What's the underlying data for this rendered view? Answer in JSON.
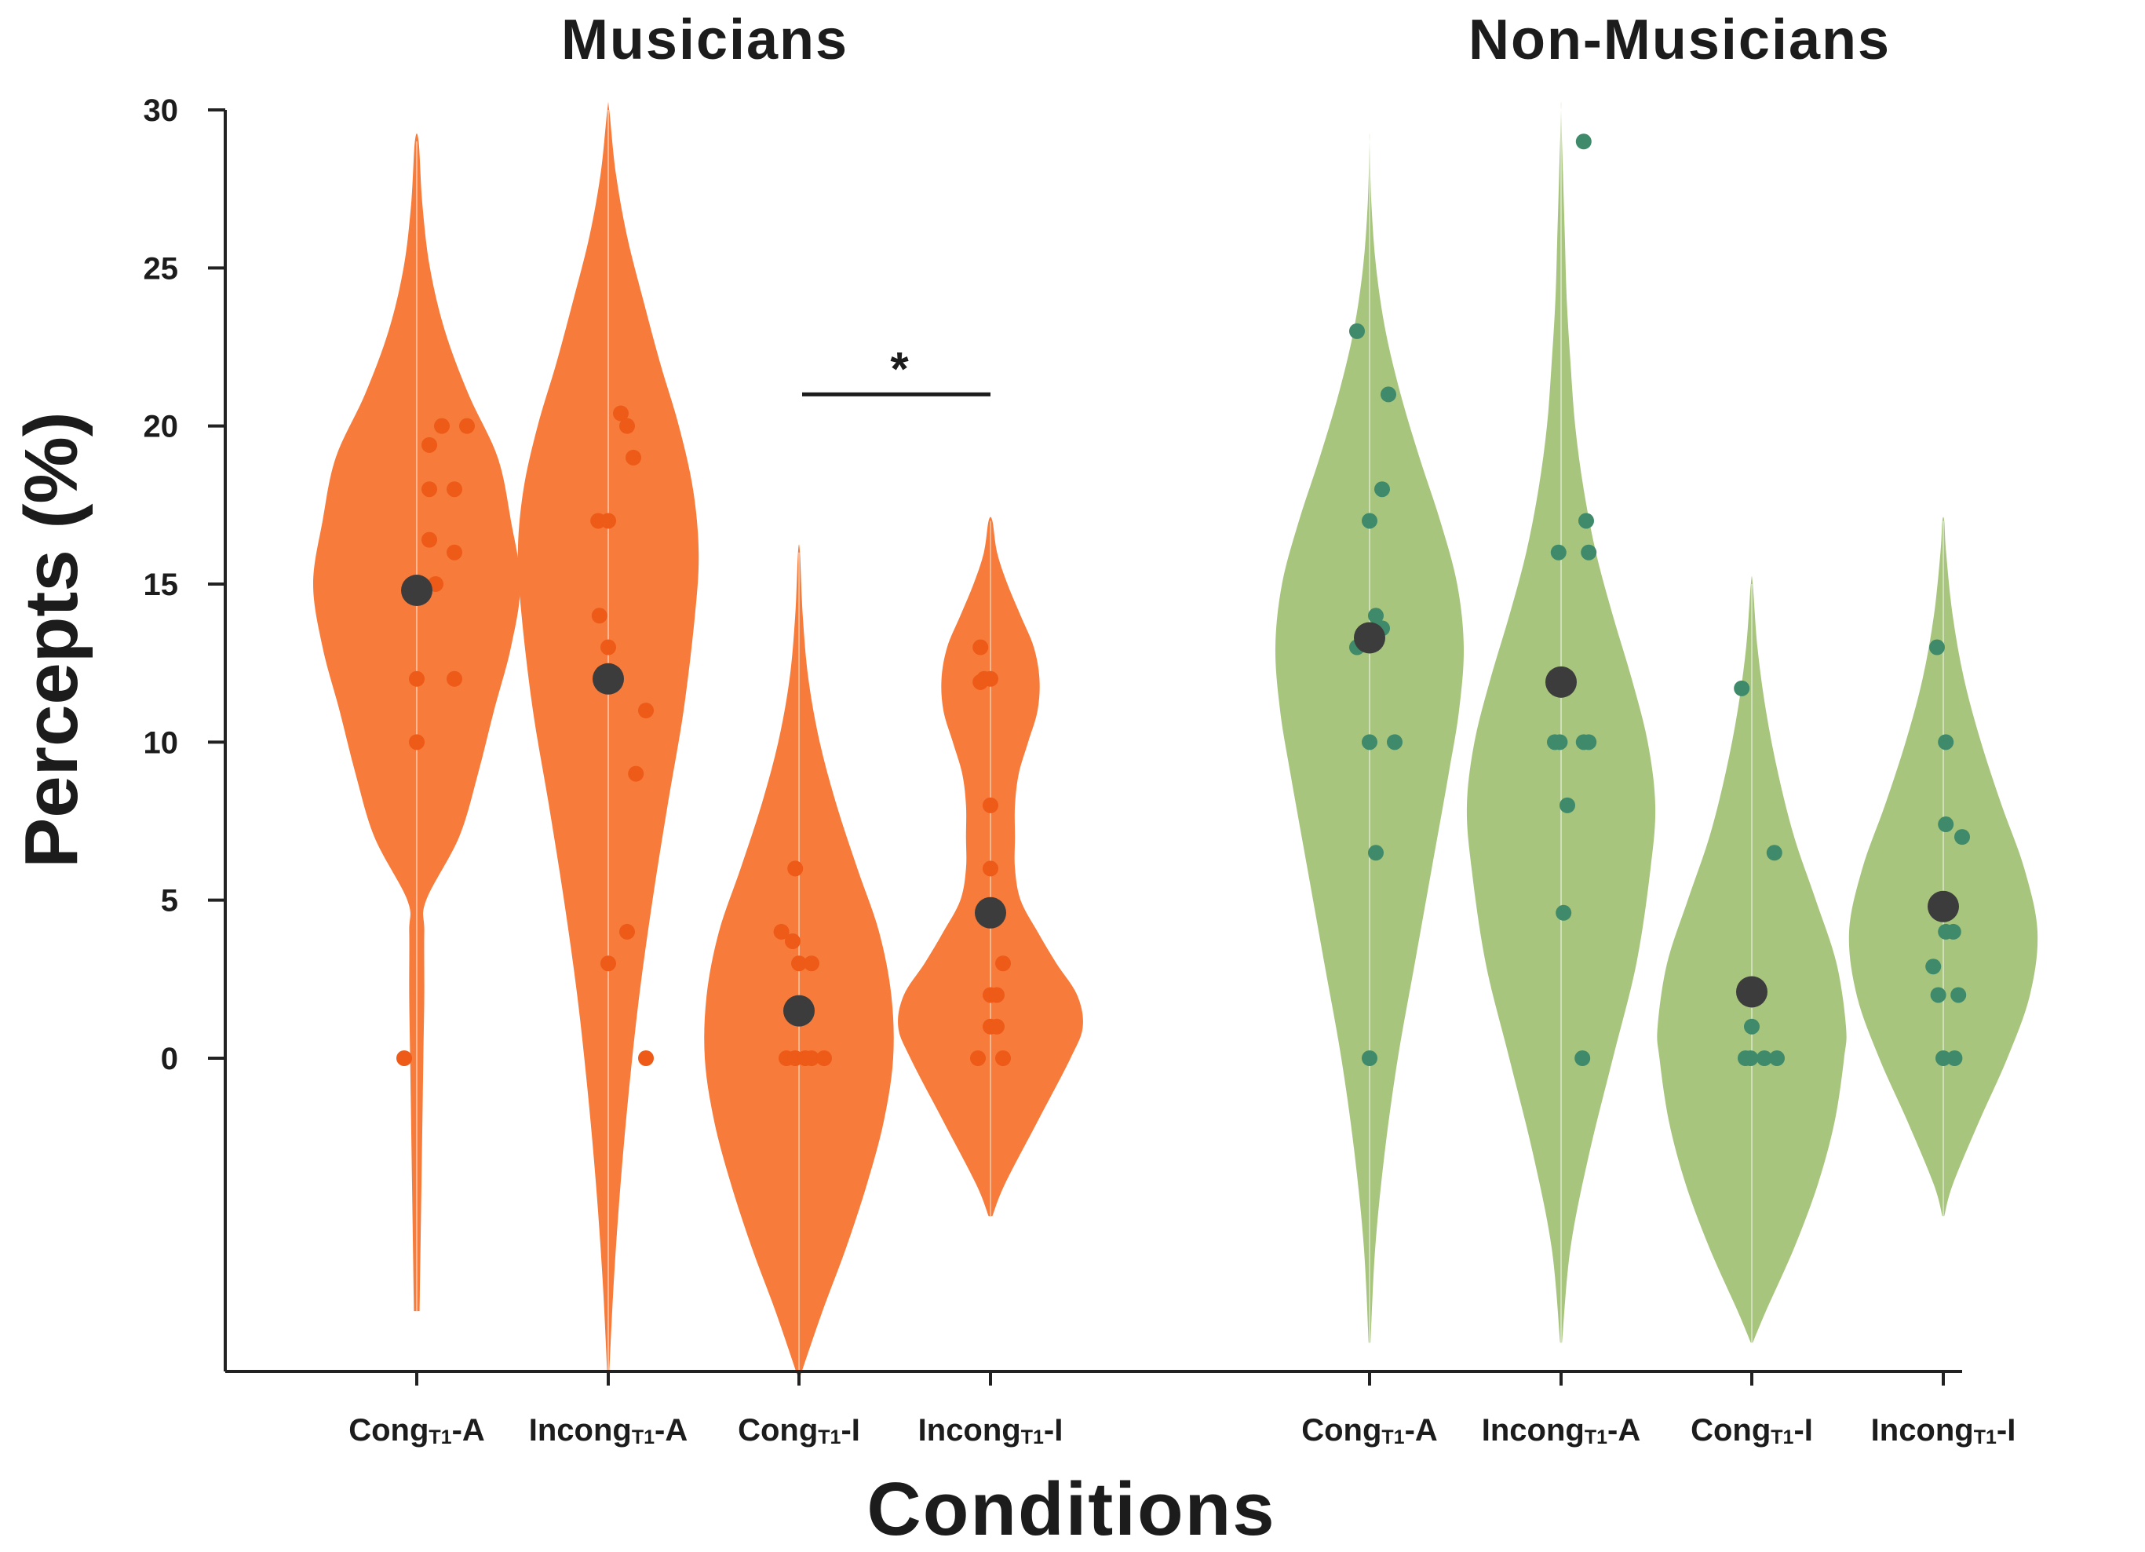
{
  "chart_data": {
    "type": "violin",
    "ylabel": "Percepts (%)",
    "xlabel": "Conditions",
    "ylim": [
      -10,
      30
    ],
    "yticks": [
      0,
      5,
      10,
      15,
      20,
      25,
      30
    ],
    "grid": false,
    "significance": [
      {
        "group": "Musicians",
        "between": [
          "CongT1-I",
          "IncongT1-I"
        ],
        "label": "*",
        "y": 21
      }
    ],
    "groups": [
      {
        "name": "Musicians",
        "color": "#f77b3a",
        "point_color": "#ee5a17",
        "mean_color": "#3c3c3c",
        "conditions": [
          {
            "label": "Cong",
            "sub": "T1",
            "suffix": "-A",
            "mean": 14.8,
            "points": [
              [
                0.0,
                10
              ],
              [
                0.0,
                12
              ],
              [
                0.1,
                16.4
              ],
              [
                0.1,
                18
              ],
              [
                0.1,
                19.4
              ],
              [
                0.2,
                20
              ],
              [
                0.15,
                15
              ],
              [
                0.4,
                20
              ],
              [
                0.3,
                18
              ],
              [
                0.3,
                16
              ],
              [
                0.3,
                12
              ],
              [
                -0.1,
                0
              ]
            ],
            "density": [
              [
                -8,
                0.03
              ],
              [
                -4,
                0.05
              ],
              [
                0,
                0.07
              ],
              [
                2,
                0.08
              ],
              [
                4,
                0.08
              ],
              [
                5,
                0.1
              ],
              [
                7,
                0.45
              ],
              [
                9,
                0.65
              ],
              [
                11,
                0.82
              ],
              [
                13,
                1.0
              ],
              [
                15,
                1.1
              ],
              [
                17,
                1.0
              ],
              [
                19,
                0.86
              ],
              [
                21,
                0.55
              ],
              [
                23,
                0.3
              ],
              [
                25,
                0.14
              ],
              [
                27,
                0.06
              ],
              [
                29,
                0.02
              ]
            ]
          },
          {
            "label": "Incong",
            "sub": "T1",
            "suffix": "-A",
            "mean": 12.0,
            "points": [
              [
                -0.08,
                17
              ],
              [
                0.0,
                17
              ],
              [
                -0.07,
                14
              ],
              [
                0.0,
                13
              ],
              [
                0.0,
                12
              ],
              [
                0.1,
                20.4
              ],
              [
                0.15,
                20
              ],
              [
                0.2,
                19
              ],
              [
                0.3,
                11
              ],
              [
                0.22,
                9
              ],
              [
                0.15,
                4
              ],
              [
                0.0,
                3
              ],
              [
                0.3,
                0
              ]
            ],
            "density": [
              [
                -10,
                0.01
              ],
              [
                -7,
                0.06
              ],
              [
                -4,
                0.13
              ],
              [
                -1,
                0.22
              ],
              [
                2,
                0.33
              ],
              [
                5,
                0.47
              ],
              [
                8,
                0.63
              ],
              [
                11,
                0.8
              ],
              [
                14,
                0.92
              ],
              [
                16,
                0.96
              ],
              [
                18,
                0.9
              ],
              [
                20,
                0.75
              ],
              [
                22,
                0.55
              ],
              [
                24,
                0.37
              ],
              [
                26,
                0.2
              ],
              [
                28,
                0.08
              ],
              [
                30,
                0.01
              ]
            ]
          },
          {
            "label": "Cong",
            "sub": "T1",
            "suffix": "-I",
            "mean": 1.5,
            "points": [
              [
                -0.14,
                4
              ],
              [
                -0.05,
                3.7
              ],
              [
                0.0,
                3
              ],
              [
                0.1,
                3
              ],
              [
                -0.1,
                0
              ],
              [
                -0.03,
                0
              ],
              [
                0.05,
                0
              ],
              [
                0.1,
                0
              ],
              [
                0.2,
                0
              ],
              [
                -0.03,
                6
              ]
            ],
            "density": [
              [
                -10,
                0.02
              ],
              [
                -8,
                0.25
              ],
              [
                -6,
                0.5
              ],
              [
                -4,
                0.72
              ],
              [
                -2,
                0.9
              ],
              [
                0,
                1.0
              ],
              [
                2,
                0.98
              ],
              [
                4,
                0.85
              ],
              [
                6,
                0.62
              ],
              [
                8,
                0.4
              ],
              [
                10,
                0.22
              ],
              [
                12,
                0.1
              ],
              [
                14,
                0.04
              ],
              [
                16,
                0.01
              ]
            ]
          },
          {
            "label": "Incong",
            "sub": "T1",
            "suffix": "-I",
            "mean": 4.6,
            "points": [
              [
                -0.08,
                13
              ],
              [
                -0.05,
                12
              ],
              [
                0.0,
                12
              ],
              [
                -0.08,
                11.9
              ],
              [
                0.0,
                8
              ],
              [
                0.0,
                6
              ],
              [
                0.1,
                3
              ],
              [
                0.0,
                2
              ],
              [
                0.05,
                2
              ],
              [
                0.0,
                1
              ],
              [
                0.05,
                1
              ],
              [
                -0.1,
                0
              ],
              [
                0.1,
                0
              ]
            ],
            "density": [
              [
                -5,
                0.02
              ],
              [
                -4,
                0.15
              ],
              [
                -2,
                0.5
              ],
              [
                0,
                0.85
              ],
              [
                1,
                0.98
              ],
              [
                2,
                0.92
              ],
              [
                3,
                0.7
              ],
              [
                4,
                0.5
              ],
              [
                5,
                0.32
              ],
              [
                6,
                0.26
              ],
              [
                7,
                0.26
              ],
              [
                8,
                0.26
              ],
              [
                9,
                0.3
              ],
              [
                10,
                0.4
              ],
              [
                11,
                0.5
              ],
              [
                12,
                0.52
              ],
              [
                13,
                0.46
              ],
              [
                14,
                0.32
              ],
              [
                15,
                0.18
              ],
              [
                16,
                0.07
              ],
              [
                17,
                0.02
              ]
            ]
          }
        ]
      },
      {
        "name": "Non-Musicians",
        "color": "#a8c57e",
        "point_color": "#3f8a6a",
        "mean_color": "#3c3c3c",
        "conditions": [
          {
            "label": "Cong",
            "sub": "T1",
            "suffix": "-A",
            "mean": 13.3,
            "points": [
              [
                -0.1,
                23
              ],
              [
                0.15,
                21
              ],
              [
                0.1,
                18
              ],
              [
                0.0,
                17
              ],
              [
                0.05,
                14
              ],
              [
                0.1,
                13.6
              ],
              [
                -0.1,
                13
              ],
              [
                0.0,
                10
              ],
              [
                0.2,
                10
              ],
              [
                0.05,
                6.5
              ],
              [
                0.0,
                0
              ]
            ],
            "density": [
              [
                -9,
                0.01
              ],
              [
                -6,
                0.06
              ],
              [
                -3,
                0.16
              ],
              [
                0,
                0.3
              ],
              [
                3,
                0.48
              ],
              [
                6,
                0.66
              ],
              [
                9,
                0.84
              ],
              [
                11,
                0.95
              ],
              [
                13,
                1.0
              ],
              [
                15,
                0.93
              ],
              [
                17,
                0.75
              ],
              [
                19,
                0.53
              ],
              [
                21,
                0.33
              ],
              [
                23,
                0.17
              ],
              [
                25,
                0.07
              ],
              [
                27,
                0.02
              ],
              [
                29,
                0.0
              ]
            ]
          },
          {
            "label": "Incong",
            "sub": "T1",
            "suffix": "-A",
            "mean": 11.9,
            "points": [
              [
                0.18,
                29
              ],
              [
                0.2,
                17
              ],
              [
                0.22,
                16
              ],
              [
                -0.02,
                16
              ],
              [
                -0.05,
                10
              ],
              [
                -0.01,
                10
              ],
              [
                0.18,
                10
              ],
              [
                0.22,
                10
              ],
              [
                0.05,
                8
              ],
              [
                0.02,
                4.6
              ],
              [
                0.17,
                0
              ]
            ],
            "density": [
              [
                -9,
                0.01
              ],
              [
                -6,
                0.1
              ],
              [
                -3,
                0.3
              ],
              [
                0,
                0.55
              ],
              [
                3,
                0.8
              ],
              [
                6,
                0.95
              ],
              [
                8,
                1.0
              ],
              [
                10,
                0.92
              ],
              [
                12,
                0.75
              ],
              [
                14,
                0.55
              ],
              [
                16,
                0.37
              ],
              [
                18,
                0.24
              ],
              [
                20,
                0.15
              ],
              [
                22,
                0.1
              ],
              [
                24,
                0.06
              ],
              [
                26,
                0.04
              ],
              [
                28,
                0.02
              ],
              [
                30,
                0.0
              ]
            ]
          },
          {
            "label": "Cong",
            "sub": "T1",
            "suffix": "-I",
            "mean": 2.1,
            "points": [
              [
                -0.08,
                11.7
              ],
              [
                0.18,
                6.5
              ],
              [
                0.01,
                2
              ],
              [
                0.0,
                1
              ],
              [
                -0.05,
                0
              ],
              [
                -0.01,
                0
              ],
              [
                0.1,
                0
              ],
              [
                0.2,
                0
              ]
            ],
            "density": [
              [
                -9,
                0.01
              ],
              [
                -8,
                0.15
              ],
              [
                -6,
                0.45
              ],
              [
                -4,
                0.7
              ],
              [
                -2,
                0.88
              ],
              [
                0,
                0.98
              ],
              [
                1,
                1.0
              ],
              [
                3,
                0.9
              ],
              [
                5,
                0.68
              ],
              [
                7,
                0.45
              ],
              [
                9,
                0.28
              ],
              [
                11,
                0.15
              ],
              [
                13,
                0.06
              ],
              [
                15,
                0.01
              ]
            ]
          },
          {
            "label": "Incong",
            "sub": "T1",
            "suffix": "-I",
            "mean": 4.8,
            "points": [
              [
                -0.05,
                13
              ],
              [
                0.02,
                10
              ],
              [
                0.02,
                7.4
              ],
              [
                0.15,
                7
              ],
              [
                -0.08,
                2.9
              ],
              [
                0.02,
                4
              ],
              [
                0.08,
                4
              ],
              [
                -0.04,
                2
              ],
              [
                0.12,
                2
              ],
              [
                0.0,
                0
              ],
              [
                0.09,
                0
              ]
            ],
            "density": [
              [
                -5,
                0.01
              ],
              [
                -4,
                0.1
              ],
              [
                -2,
                0.38
              ],
              [
                0,
                0.68
              ],
              [
                2,
                0.92
              ],
              [
                4,
                1.0
              ],
              [
                6,
                0.86
              ],
              [
                8,
                0.62
              ],
              [
                10,
                0.4
              ],
              [
                12,
                0.22
              ],
              [
                14,
                0.1
              ],
              [
                16,
                0.03
              ],
              [
                17,
                0.01
              ]
            ]
          }
        ]
      }
    ]
  }
}
